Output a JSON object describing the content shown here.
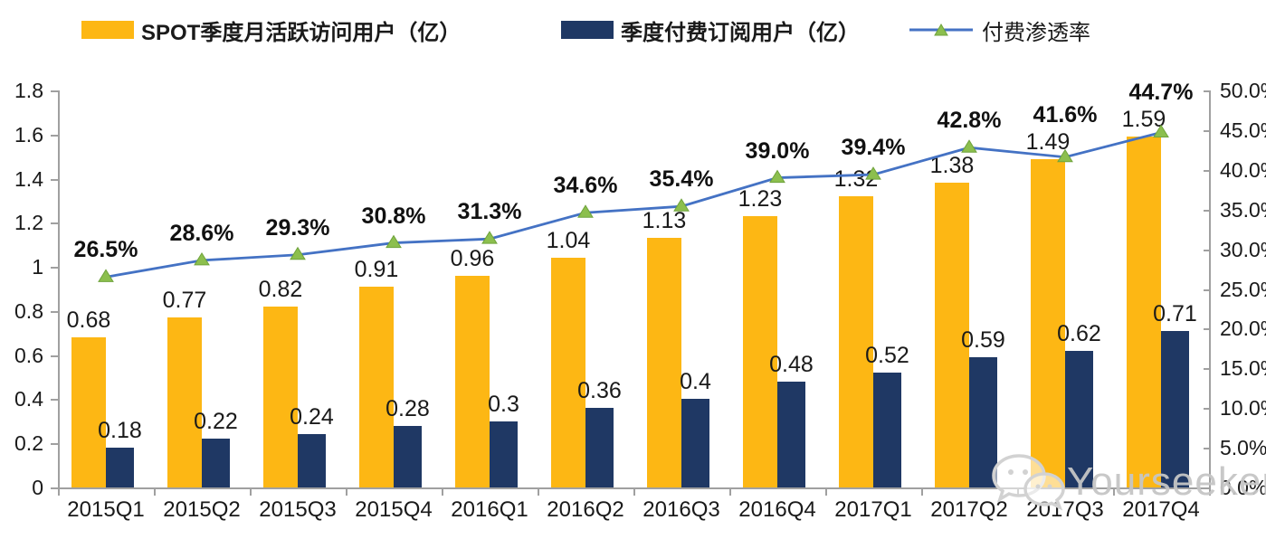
{
  "chart_data": {
    "type": "bar",
    "subtype": "grouped-bars-with-line-combo",
    "categories": [
      "2015Q1",
      "2015Q2",
      "2015Q3",
      "2015Q4",
      "2016Q1",
      "2016Q2",
      "2016Q3",
      "2016Q4",
      "2017Q1",
      "2017Q2",
      "2017Q3",
      "2017Q4"
    ],
    "series": [
      {
        "name": "SPOT季度月活跃访问用户（亿）",
        "type": "bar",
        "axis": "left",
        "color": "#FDB714",
        "values": [
          0.68,
          0.77,
          0.82,
          0.91,
          0.96,
          1.04,
          1.13,
          1.23,
          1.32,
          1.38,
          1.49,
          1.59
        ]
      },
      {
        "name": "季度付费订阅用户（亿）",
        "type": "bar",
        "axis": "left",
        "color": "#1F3864",
        "values": [
          0.18,
          0.22,
          0.24,
          0.28,
          0.3,
          0.36,
          0.4,
          0.48,
          0.52,
          0.59,
          0.62,
          0.71
        ]
      },
      {
        "name": "付费渗透率",
        "type": "line",
        "axis": "right",
        "color": "#4472C4",
        "marker": "triangle-up",
        "marker_color": "#8CBF4E",
        "values": [
          26.5,
          28.6,
          29.3,
          30.8,
          31.3,
          34.6,
          35.4,
          39.0,
          39.4,
          42.8,
          41.6,
          44.7
        ],
        "labels": [
          "26.5%",
          "28.6%",
          "29.3%",
          "30.8%",
          "31.3%",
          "34.6%",
          "35.4%",
          "39.0%",
          "39.4%",
          "42.8%",
          "41.6%",
          "44.7%"
        ]
      }
    ],
    "left_axis": {
      "min": 0,
      "max": 1.8,
      "step": 0.2,
      "labels": [
        "0",
        "0.2",
        "0.4",
        "0.6",
        "0.8",
        "1",
        "1.2",
        "1.4",
        "1.6",
        "1.8"
      ]
    },
    "right_axis": {
      "min": 0,
      "max": 50,
      "step": 5,
      "labels": [
        "0.0%",
        "5.0%",
        "10.0%",
        "15.0%",
        "20.0%",
        "25.0%",
        "30.0%",
        "35.0%",
        "40.0%",
        "45.0%",
        "50.0%"
      ]
    },
    "grid": false,
    "legend_position": "top",
    "title": ""
  },
  "watermark": {
    "text": "Yourseeker",
    "icon": "wechat-icon"
  }
}
